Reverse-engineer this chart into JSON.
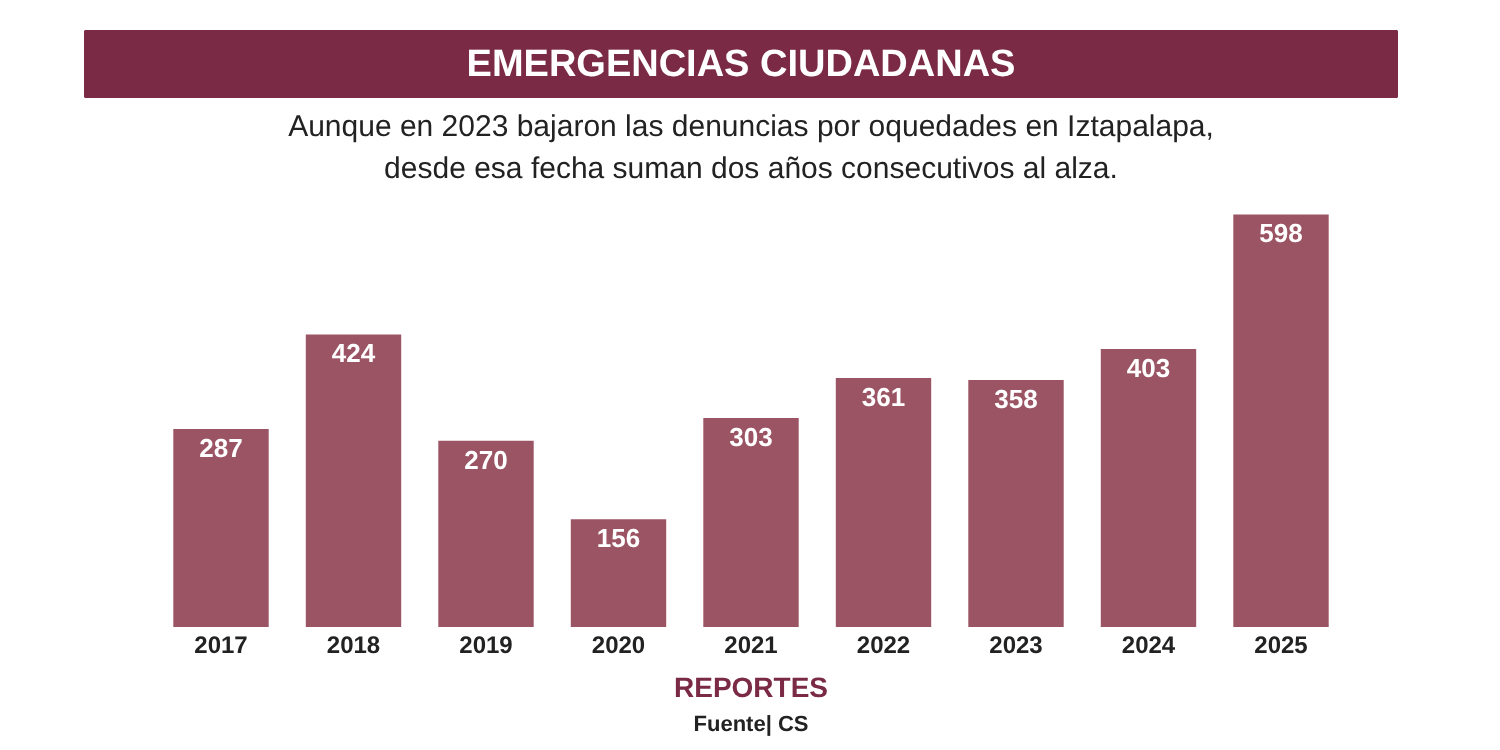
{
  "chart_data": {
    "type": "bar",
    "title": "EMERGENCIAS CIUDADANAS",
    "subtitle": "Aunque en 2023 bajaron las denuncias por oquedades en Iztapalapa,\ndesde esa fecha suman dos años consecutivos al alza.",
    "xlabel": "REPORTES",
    "annotations": [
      "Fuente| CS"
    ],
    "categories": [
      "2017",
      "2018",
      "2019",
      "2020",
      "2021",
      "2022",
      "2023",
      "2024",
      "2025"
    ],
    "values": [
      287,
      424,
      270,
      156,
      303,
      361,
      358,
      403,
      598
    ],
    "color": "#9b5463",
    "data_labels": true
  }
}
